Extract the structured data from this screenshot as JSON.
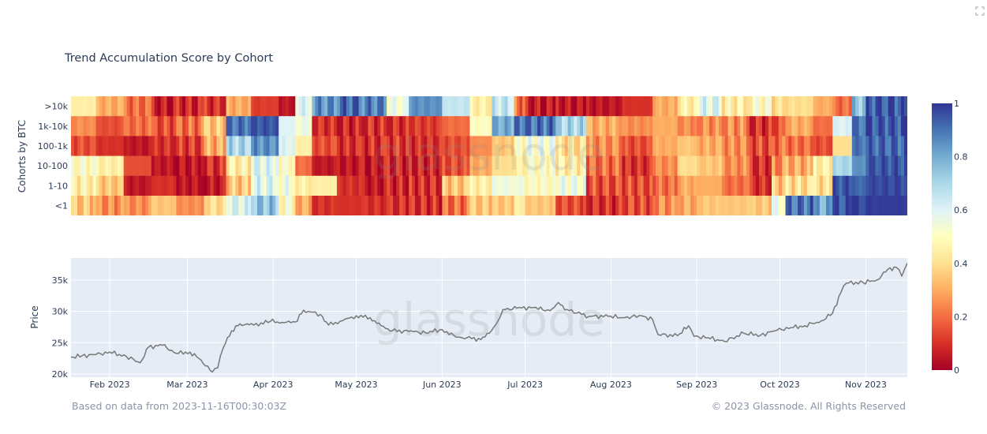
{
  "title": "Trend Accumulation Score by Cohort",
  "footer": {
    "source": "Based on data from 2023-11-16T00:30:03Z",
    "copyright": "© 2023 Glassnode. All Rights Reserved"
  },
  "watermark": "glassnode",
  "colorscale": [
    "#a50026",
    "#d73027",
    "#f46d43",
    "#fdae61",
    "#fee090",
    "#ffffbf",
    "#e0f3f8",
    "#abd9e9",
    "#74add1",
    "#4575b4",
    "#313695"
  ],
  "chart_data": [
    {
      "type": "heatmap",
      "ylabel": "Cohorts by BTC",
      "rows": [
        ">10k",
        "1k-10k",
        "100-1k",
        "10-100",
        "1-10",
        "<1"
      ],
      "x_range": [
        "2023-01-18",
        "2023-11-16"
      ],
      "colorbar": {
        "min": 0,
        "max": 1,
        "ticks": [
          0,
          0.2,
          0.4,
          0.6,
          0.8,
          1
        ]
      },
      "segments": [
        {
          "start": "2023-01-18",
          "values": [
            0.45,
            0.25,
            0.15,
            0.5,
            0.45,
            0.35
          ]
        },
        {
          "start": "2023-01-27",
          "values": [
            0.3,
            0.15,
            0.1,
            0.45,
            0.35,
            0.25
          ]
        },
        {
          "start": "2023-02-06",
          "values": [
            0.2,
            0.2,
            0.05,
            0.15,
            0.05,
            0.25
          ]
        },
        {
          "start": "2023-02-16",
          "values": [
            0.05,
            0.15,
            0.1,
            0.05,
            0.1,
            0.35
          ]
        },
        {
          "start": "2023-02-25",
          "values": [
            0.08,
            0.2,
            0.12,
            0.05,
            0.05,
            0.25
          ]
        },
        {
          "start": "2023-03-07",
          "values": [
            0.1,
            0.35,
            0.3,
            0.1,
            0.05,
            0.4
          ]
        },
        {
          "start": "2023-03-15",
          "values": [
            0.3,
            0.9,
            0.7,
            0.45,
            0.35,
            0.6
          ]
        },
        {
          "start": "2023-03-24",
          "values": [
            0.12,
            0.95,
            0.85,
            0.6,
            0.6,
            0.75
          ]
        },
        {
          "start": "2023-04-03",
          "values": [
            0.05,
            0.6,
            0.6,
            0.5,
            0.55,
            0.5
          ]
        },
        {
          "start": "2023-04-09",
          "values": [
            0.6,
            0.55,
            0.45,
            0.2,
            0.45,
            0.3
          ]
        },
        {
          "start": "2023-04-15",
          "values": [
            0.85,
            0.1,
            0.15,
            0.05,
            0.45,
            0.1
          ]
        },
        {
          "start": "2023-04-24",
          "values": [
            0.92,
            0.08,
            0.1,
            0.05,
            0.1,
            0.1
          ]
        },
        {
          "start": "2023-05-03",
          "values": [
            0.88,
            0.1,
            0.1,
            0.05,
            0.05,
            0.1
          ]
        },
        {
          "start": "2023-05-12",
          "values": [
            0.55,
            0.1,
            0.12,
            0.08,
            0.08,
            0.1
          ]
        },
        {
          "start": "2023-05-20",
          "values": [
            0.85,
            0.12,
            0.1,
            0.08,
            0.1,
            0.1
          ]
        },
        {
          "start": "2023-06-01",
          "values": [
            0.65,
            0.2,
            0.15,
            0.15,
            0.35,
            0.2
          ]
        },
        {
          "start": "2023-06-11",
          "values": [
            0.45,
            0.5,
            0.25,
            0.3,
            0.45,
            0.35
          ]
        },
        {
          "start": "2023-06-19",
          "values": [
            0.65,
            0.8,
            0.35,
            0.4,
            0.55,
            0.35
          ]
        },
        {
          "start": "2023-06-27",
          "values": [
            0.2,
            0.9,
            0.5,
            0.45,
            0.55,
            0.45
          ]
        },
        {
          "start": "2023-07-01",
          "values": [
            0.05,
            0.9,
            0.55,
            0.5,
            0.5,
            0.35
          ]
        },
        {
          "start": "2023-07-12",
          "values": [
            0.05,
            0.7,
            0.4,
            0.45,
            0.55,
            0.15
          ]
        },
        {
          "start": "2023-07-23",
          "values": [
            0.05,
            0.3,
            0.25,
            0.2,
            0.15,
            0.1
          ]
        },
        {
          "start": "2023-08-05",
          "values": [
            0.1,
            0.25,
            0.15,
            0.1,
            0.15,
            0.15
          ]
        },
        {
          "start": "2023-08-16",
          "values": [
            0.3,
            0.3,
            0.3,
            0.25,
            0.2,
            0.25
          ]
        },
        {
          "start": "2023-08-25",
          "values": [
            0.45,
            0.25,
            0.35,
            0.4,
            0.3,
            0.3
          ]
        },
        {
          "start": "2023-09-01",
          "values": [
            0.6,
            0.25,
            0.3,
            0.35,
            0.3,
            0.35
          ]
        },
        {
          "start": "2023-09-10",
          "values": [
            0.45,
            0.25,
            0.25,
            0.25,
            0.2,
            0.35
          ]
        },
        {
          "start": "2023-09-20",
          "values": [
            0.5,
            0.1,
            0.15,
            0.1,
            0.1,
            0.35
          ]
        },
        {
          "start": "2023-09-28",
          "values": [
            0.4,
            0.15,
            0.2,
            0.25,
            0.35,
            0.55
          ]
        },
        {
          "start": "2023-10-03",
          "values": [
            0.4,
            0.3,
            0.2,
            0.3,
            0.4,
            0.9
          ]
        },
        {
          "start": "2023-10-13",
          "values": [
            0.3,
            0.2,
            0.15,
            0.45,
            0.4,
            0.8
          ]
        },
        {
          "start": "2023-10-20",
          "values": [
            0.2,
            0.6,
            0.4,
            0.7,
            0.95,
            0.95
          ]
        },
        {
          "start": "2023-10-27",
          "values": [
            0.75,
            0.9,
            0.9,
            0.85,
            0.92,
            0.98
          ]
        },
        {
          "start": "2023-11-01",
          "values": [
            0.95,
            0.95,
            0.92,
            0.95,
            0.97,
            0.99
          ]
        }
      ]
    },
    {
      "type": "line",
      "ylabel": "Price",
      "ylim": [
        19500,
        38500
      ],
      "yticks": [
        20000,
        25000,
        30000,
        35000
      ],
      "ytick_labels": [
        "20k",
        "25k",
        "30k",
        "35k"
      ],
      "xticks": [
        "2023-02-01",
        "2023-03-01",
        "2023-04-01",
        "2023-05-01",
        "2023-06-01",
        "2023-07-01",
        "2023-08-01",
        "2023-09-01",
        "2023-10-01",
        "2023-11-01"
      ],
      "xtick_labels": [
        "Feb 2023",
        "Mar 2023",
        "Apr 2023",
        "May 2023",
        "Jun 2023",
        "Jul 2023",
        "Aug 2023",
        "Sep 2023",
        "Oct 2023",
        "Nov 2023"
      ],
      "x_range": [
        "2023-01-18",
        "2023-11-16"
      ],
      "series": [
        {
          "color": "#777777",
          "x": [
            "2023-01-18",
            "2023-01-22",
            "2023-01-27",
            "2023-02-01",
            "2023-02-07",
            "2023-02-12",
            "2023-02-15",
            "2023-02-20",
            "2023-02-25",
            "2023-03-02",
            "2023-03-06",
            "2023-03-10",
            "2023-03-12",
            "2023-03-14",
            "2023-03-17",
            "2023-03-20",
            "2023-03-25",
            "2023-03-31",
            "2023-04-05",
            "2023-04-09",
            "2023-04-12",
            "2023-04-18",
            "2023-04-21",
            "2023-04-26",
            "2023-05-01",
            "2023-05-06",
            "2023-05-10",
            "2023-05-14",
            "2023-05-20",
            "2023-05-26",
            "2023-06-01",
            "2023-06-06",
            "2023-06-10",
            "2023-06-15",
            "2023-06-18",
            "2023-06-21",
            "2023-06-23",
            "2023-06-28",
            "2023-07-04",
            "2023-07-10",
            "2023-07-13",
            "2023-07-16",
            "2023-07-24",
            "2023-07-31",
            "2023-08-06",
            "2023-08-12",
            "2023-08-16",
            "2023-08-18",
            "2023-08-25",
            "2023-08-29",
            "2023-08-31",
            "2023-09-05",
            "2023-09-11",
            "2023-09-18",
            "2023-09-24",
            "2023-09-30",
            "2023-10-05",
            "2023-10-10",
            "2023-10-16",
            "2023-10-20",
            "2023-10-23",
            "2023-10-25",
            "2023-10-31",
            "2023-11-05",
            "2023-11-09",
            "2023-11-12",
            "2023-11-14",
            "2023-11-16"
          ],
          "y": [
            22700,
            22900,
            23100,
            23500,
            22800,
            21800,
            24300,
            24600,
            23300,
            23500,
            22200,
            20300,
            21000,
            24200,
            26900,
            28000,
            27800,
            28400,
            28200,
            28300,
            30200,
            29500,
            27800,
            28500,
            29300,
            29000,
            27700,
            26900,
            26800,
            26600,
            27100,
            25900,
            25800,
            25500,
            26500,
            28300,
            30300,
            30500,
            30600,
            30100,
            31400,
            30300,
            29200,
            29200,
            29000,
            29300,
            28700,
            26300,
            26100,
            27700,
            26000,
            25800,
            25200,
            26500,
            26200,
            27000,
            27400,
            27700,
            28500,
            29700,
            33000,
            34500,
            34600,
            35000,
            36700,
            37000,
            35600,
            37700
          ]
        }
      ]
    }
  ]
}
